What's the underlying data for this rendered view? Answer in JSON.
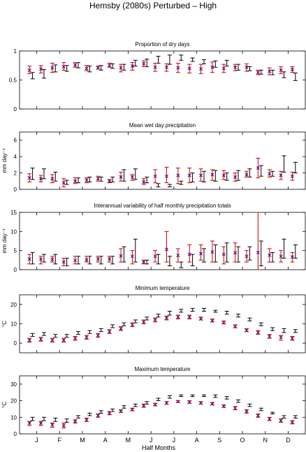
{
  "figure": {
    "title": "Hemsby (2080s) Perturbed – High",
    "xlabel": "Half Months",
    "month_labels": [
      "J",
      "F",
      "M",
      "A",
      "M",
      "J",
      "J",
      "A",
      "S",
      "O",
      "N",
      "D"
    ]
  },
  "colors": {
    "black_series": "#000000",
    "red_series": "#cc0000",
    "marker": "#4b0082"
  },
  "chart_data": [
    {
      "type": "errorbar",
      "title": "Proportion of dry days",
      "ylabel": "",
      "ylim": [
        0,
        1
      ],
      "yticks": [
        0,
        0.5,
        1
      ],
      "ytick_labels": [
        "0",
        "0.5",
        "1"
      ],
      "x": [
        1,
        2,
        3,
        4,
        5,
        6,
        7,
        8,
        9,
        10,
        11,
        12,
        13,
        14,
        15,
        16,
        17,
        18,
        19,
        20,
        21,
        22,
        23,
        24
      ],
      "series": [
        {
          "color": "black",
          "low": [
            0.52,
            0.53,
            0.64,
            0.65,
            0.71,
            0.64,
            0.67,
            0.7,
            0.67,
            0.74,
            0.73,
            0.79,
            0.77,
            0.84,
            0.82,
            0.78,
            0.72,
            0.74,
            0.67,
            0.66,
            0.6,
            0.59,
            0.54,
            0.49
          ],
          "high": [
            0.63,
            0.68,
            0.76,
            0.75,
            0.8,
            0.74,
            0.75,
            0.78,
            0.77,
            0.84,
            0.86,
            0.91,
            0.93,
            0.93,
            0.88,
            0.85,
            0.83,
            0.84,
            0.77,
            0.73,
            0.67,
            0.67,
            0.64,
            0.62
          ]
        },
        {
          "color": "red",
          "low": [
            0.61,
            0.62,
            0.63,
            0.67,
            0.72,
            0.66,
            0.69,
            0.72,
            0.64,
            0.67,
            0.73,
            0.65,
            0.65,
            0.63,
            0.62,
            0.61,
            0.63,
            0.63,
            0.66,
            0.65,
            0.59,
            0.59,
            0.61,
            0.63
          ],
          "mid": [
            0.67,
            0.69,
            0.71,
            0.73,
            0.76,
            0.7,
            0.71,
            0.75,
            0.71,
            0.74,
            0.78,
            0.72,
            0.72,
            0.71,
            0.7,
            0.69,
            0.72,
            0.7,
            0.72,
            0.72,
            0.63,
            0.65,
            0.67,
            0.68
          ],
          "high": [
            0.74,
            0.75,
            0.79,
            0.8,
            0.8,
            0.75,
            0.74,
            0.79,
            0.77,
            0.8,
            0.83,
            0.79,
            0.78,
            0.79,
            0.77,
            0.77,
            0.81,
            0.77,
            0.77,
            0.78,
            0.67,
            0.71,
            0.73,
            0.73
          ]
        }
      ]
    },
    {
      "type": "errorbar",
      "title": "Mean wet day precipitation",
      "ylabel": "mm day⁻¹",
      "ylim": [
        0,
        7
      ],
      "yticks": [
        0,
        2,
        4,
        6
      ],
      "ytick_labels": [
        "0",
        "2",
        "4",
        "6"
      ],
      "x": [
        1,
        2,
        3,
        4,
        5,
        6,
        7,
        8,
        9,
        10,
        11,
        12,
        13,
        14,
        15,
        16,
        17,
        18,
        19,
        20,
        21,
        22,
        23,
        24
      ],
      "series": [
        {
          "color": "black",
          "low": [
            1.2,
            1.3,
            1.0,
            0.6,
            0.8,
            0.9,
            1.0,
            0.9,
            1.0,
            1.2,
            0.8,
            0.3,
            0.3,
            0.6,
            0.9,
            0.9,
            1.0,
            1.1,
            1.1,
            1.5,
            1.6,
            1.6,
            2.1,
            2.0
          ],
          "high": [
            2.6,
            2.5,
            2.1,
            1.1,
            1.4,
            1.5,
            1.5,
            1.5,
            2.4,
            2.5,
            1.5,
            0.7,
            0.6,
            1.0,
            2.0,
            2.2,
            2.3,
            2.0,
            2.3,
            2.5,
            2.9,
            2.2,
            4.1,
            3.3
          ]
        },
        {
          "color": "red",
          "low": [
            0.9,
            0.9,
            0.8,
            0.3,
            0.7,
            0.8,
            1.0,
            0.8,
            1.0,
            1.1,
            0.6,
            0.8,
            0.8,
            0.7,
            0.8,
            1.0,
            1.1,
            1.2,
            1.0,
            1.5,
            1.4,
            1.5,
            1.2,
            1.1
          ],
          "mid": [
            1.4,
            1.3,
            1.3,
            0.8,
            1.0,
            1.1,
            1.3,
            1.0,
            1.5,
            1.5,
            0.9,
            1.6,
            1.6,
            1.7,
            1.7,
            1.7,
            1.8,
            1.7,
            1.5,
            1.8,
            2.6,
            1.9,
            1.7,
            1.6
          ],
          "high": [
            1.9,
            1.7,
            1.8,
            1.3,
            1.4,
            1.4,
            1.6,
            1.2,
            2.1,
            1.8,
            1.3,
            2.4,
            2.7,
            2.6,
            2.6,
            2.5,
            2.4,
            2.3,
            2.0,
            2.2,
            3.8,
            2.4,
            2.2,
            2.1
          ]
        }
      ]
    },
    {
      "type": "errorbar",
      "title": "Interannual variability of half monthly precipitation totals",
      "ylabel": "mm day⁻¹",
      "ylim": [
        0,
        15
      ],
      "yticks": [
        0,
        5,
        10,
        15
      ],
      "ytick_labels": [
        "0",
        "5",
        "10",
        "15"
      ],
      "x": [
        1,
        2,
        3,
        4,
        5,
        6,
        7,
        8,
        9,
        10,
        11,
        12,
        13,
        14,
        15,
        16,
        17,
        18,
        19,
        20,
        21,
        22,
        23,
        24
      ],
      "series": [
        {
          "color": "black",
          "low": [
            1.5,
            2.0,
            1.5,
            1.0,
            1.5,
            1.5,
            1.5,
            1.5,
            2.0,
            2.0,
            1.5,
            1.5,
            1.0,
            0.5,
            1.0,
            2.0,
            2.0,
            2.0,
            2.0,
            2.5,
            1.0,
            2.0,
            3.0,
            3.0
          ],
          "high": [
            4.5,
            4.0,
            4.0,
            3.0,
            3.5,
            3.5,
            3.5,
            3.5,
            6.0,
            8.0,
            2.5,
            4.0,
            3.5,
            2.0,
            4.0,
            5.5,
            6.5,
            7.0,
            6.0,
            6.0,
            7.5,
            4.5,
            8.0,
            6.5
          ]
        },
        {
          "color": "red",
          "low": [
            1.5,
            1.5,
            2.0,
            1.0,
            1.5,
            2.0,
            2.0,
            2.0,
            2.0,
            1.5,
            1.5,
            2.0,
            2.0,
            2.0,
            2.0,
            2.5,
            2.0,
            1.5,
            2.0,
            2.0,
            0.0,
            2.0,
            2.0,
            2.0
          ],
          "mid": [
            2.8,
            2.7,
            2.7,
            2.0,
            2.4,
            2.6,
            2.8,
            2.8,
            3.6,
            3.5,
            2.0,
            3.5,
            5.3,
            3.7,
            4.0,
            4.2,
            4.6,
            4.0,
            4.4,
            3.5,
            4.5,
            3.8,
            3.5,
            3.3
          ],
          "high": [
            4.0,
            3.5,
            3.5,
            3.0,
            3.5,
            3.5,
            3.5,
            3.5,
            5.5,
            5.0,
            2.5,
            5.0,
            10.0,
            5.5,
            6.5,
            6.5,
            7.5,
            6.0,
            7.0,
            5.0,
            15.0,
            5.5,
            5.0,
            4.5
          ]
        }
      ]
    },
    {
      "type": "errorbar",
      "title": "Minimum temperature",
      "ylabel": "°C",
      "ylim": [
        -5,
        25
      ],
      "yticks": [
        0,
        10,
        20
      ],
      "ytick_labels": [
        "0",
        "10",
        "20"
      ],
      "x": [
        1,
        2,
        3,
        4,
        5,
        6,
        7,
        8,
        9,
        10,
        11,
        12,
        13,
        14,
        15,
        16,
        17,
        18,
        19,
        20,
        21,
        22,
        23,
        24
      ],
      "series": [
        {
          "color": "black",
          "low": [
            3.5,
            4.0,
            3.0,
            3.0,
            4.5,
            5.0,
            6.0,
            8.0,
            9.0,
            10.5,
            12.0,
            13.5,
            14.5,
            16.0,
            16.5,
            16.5,
            16.0,
            15.0,
            13.5,
            11.5,
            9.0,
            6.5,
            5.5,
            5.5
          ],
          "high": [
            5.0,
            5.5,
            4.5,
            4.5,
            6.0,
            6.5,
            7.5,
            9.5,
            10.5,
            12.0,
            13.5,
            15.0,
            16.5,
            17.5,
            18.0,
            18.0,
            17.0,
            16.5,
            15.0,
            13.0,
            10.5,
            8.0,
            7.5,
            7.0
          ]
        },
        {
          "color": "red",
          "low": [
            0.5,
            1.0,
            0.5,
            0.5,
            1.5,
            2.0,
            3.0,
            5.0,
            6.5,
            8.5,
            10.0,
            11.0,
            12.0,
            12.5,
            12.5,
            12.0,
            11.0,
            10.0,
            8.0,
            6.0,
            4.5,
            2.5,
            1.5,
            1.5
          ],
          "mid": [
            1.5,
            2.0,
            1.5,
            1.5,
            2.5,
            3.0,
            4.0,
            6.0,
            7.5,
            9.5,
            11.0,
            12.0,
            13.0,
            13.5,
            13.5,
            12.5,
            11.5,
            10.5,
            8.5,
            6.5,
            5.5,
            3.5,
            3.0,
            2.5
          ],
          "high": [
            2.5,
            3.0,
            2.5,
            2.5,
            3.5,
            4.0,
            5.0,
            7.0,
            8.5,
            10.5,
            12.0,
            13.0,
            14.0,
            14.5,
            14.5,
            13.5,
            12.5,
            11.5,
            9.5,
            7.5,
            6.5,
            4.5,
            4.0,
            3.5
          ]
        }
      ]
    },
    {
      "type": "errorbar",
      "title": "Maximum temperature",
      "ylabel": "°C",
      "ylim": [
        0,
        35
      ],
      "yticks": [
        0,
        10,
        20,
        30
      ],
      "ytick_labels": [
        "0",
        "10",
        "20",
        "30"
      ],
      "x": [
        1,
        2,
        3,
        4,
        5,
        6,
        7,
        8,
        9,
        10,
        11,
        12,
        13,
        14,
        15,
        16,
        17,
        18,
        19,
        20,
        21,
        22,
        23,
        24
      ],
      "series": [
        {
          "color": "black",
          "low": [
            8.0,
            8.0,
            7.5,
            7.0,
            9.5,
            11.0,
            12.5,
            13.5,
            15.5,
            16.5,
            18.0,
            20.0,
            21.5,
            22.5,
            22.5,
            22.5,
            22.0,
            21.0,
            19.0,
            16.5,
            14.0,
            12.0,
            9.5,
            9.5
          ],
          "high": [
            10.0,
            10.0,
            9.5,
            9.0,
            11.0,
            12.5,
            14.0,
            15.0,
            17.0,
            18.0,
            19.5,
            21.5,
            23.0,
            23.5,
            23.5,
            23.5,
            23.5,
            22.5,
            20.5,
            18.0,
            15.5,
            13.0,
            11.0,
            11.0
          ]
        },
        {
          "color": "red",
          "low": [
            5.0,
            5.0,
            4.0,
            3.5,
            6.5,
            7.5,
            10.0,
            11.5,
            13.0,
            14.0,
            16.0,
            17.0,
            18.0,
            19.0,
            18.5,
            18.0,
            17.5,
            16.0,
            14.5,
            12.5,
            10.0,
            8.0,
            7.0,
            6.0
          ],
          "mid": [
            6.5,
            6.5,
            5.5,
            5.0,
            7.5,
            8.5,
            11.0,
            12.5,
            13.5,
            14.5,
            17.0,
            17.5,
            18.5,
            19.5,
            19.0,
            18.5,
            18.0,
            16.5,
            15.5,
            13.5,
            11.0,
            9.0,
            8.0,
            7.0
          ],
          "high": [
            7.5,
            7.5,
            6.5,
            6.5,
            8.5,
            9.5,
            12.0,
            13.5,
            14.5,
            15.5,
            18.0,
            18.5,
            19.5,
            20.0,
            20.0,
            19.5,
            19.0,
            17.5,
            16.5,
            14.5,
            12.0,
            10.0,
            9.0,
            8.0
          ]
        }
      ]
    }
  ]
}
